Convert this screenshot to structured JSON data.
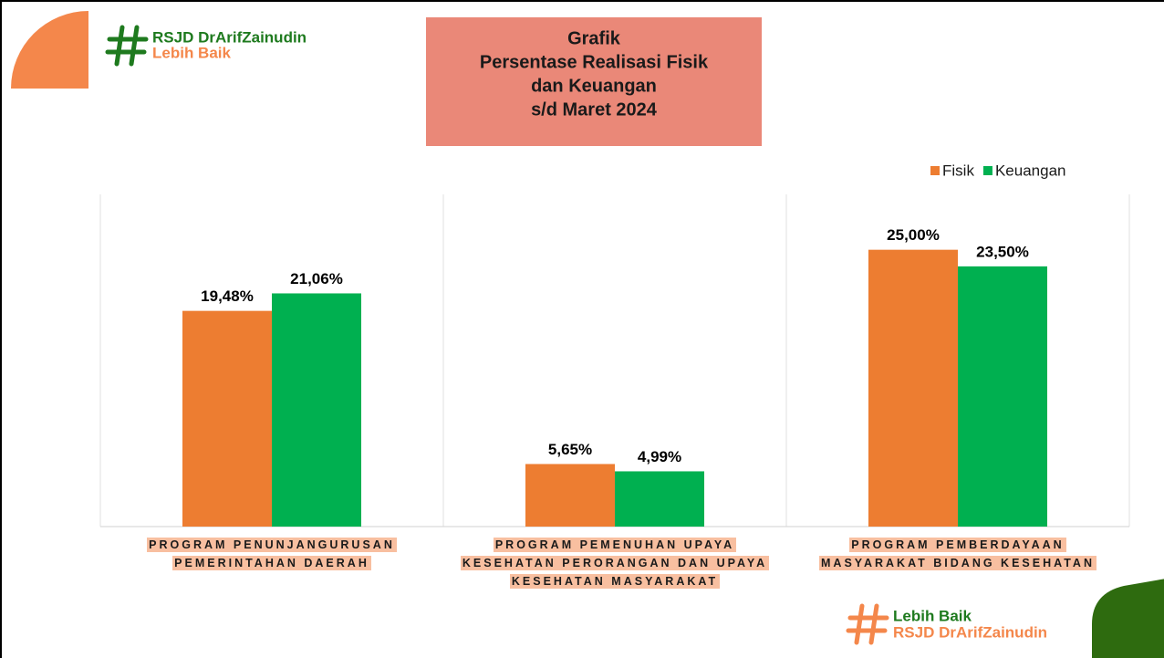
{
  "logo_top": {
    "name": "RSJD DrArifZainudin",
    "tagline": "Lebih Baik"
  },
  "logo_bottom": {
    "tagline": "Lebih Baik",
    "name": "RSJD DrArifZainudin"
  },
  "chart_data": {
    "type": "bar",
    "title": [
      "Grafik",
      "Persentase Realisasi Fisik",
      "dan Keuangan",
      "s/d Maret 2024"
    ],
    "categories": [
      "PROGRAM PENUNJANGURUSAN PEMERINTAHAN DAERAH",
      "PROGRAM PEMENUHAN UPAYA KESEHATAN PERORANGAN DAN UPAYA KESEHATAN MASYARAKAT",
      "PROGRAM PEMBERDAYAAN MASYARAKAT BIDANG KESEHATAN"
    ],
    "series": [
      {
        "name": "Fisik",
        "color": "#ED7D31",
        "values": [
          19.48,
          5.65,
          25.0
        ],
        "value_labels": [
          "19,48%",
          "5,65%",
          "25,00%"
        ]
      },
      {
        "name": "Keuangan",
        "color": "#00B050",
        "values": [
          21.06,
          4.99,
          23.5
        ],
        "value_labels": [
          "21,06%",
          "4,99%",
          "23,50%"
        ]
      }
    ],
    "ylim": [
      0,
      30
    ],
    "legend": "top-right"
  }
}
